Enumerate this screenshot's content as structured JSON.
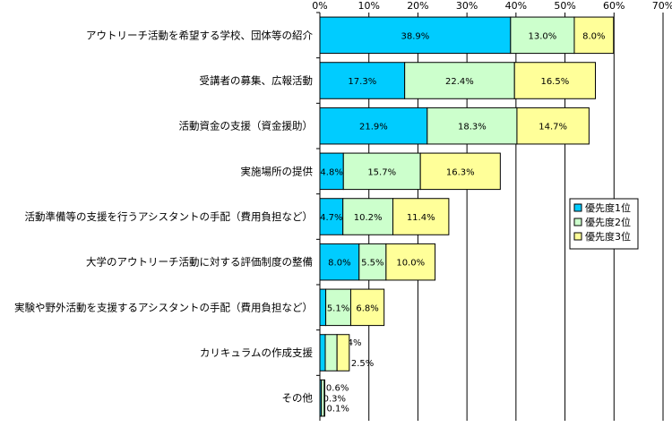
{
  "chart_data": {
    "type": "bar",
    "orientation": "horizontal",
    "stacked": true,
    "title": "",
    "xlabel": "",
    "ylabel": "",
    "xlim": [
      0,
      70
    ],
    "x_ticks": [
      0,
      10,
      20,
      30,
      40,
      50,
      60,
      70
    ],
    "tick_format": "{v}%",
    "grid": true,
    "legend_position": "right",
    "categories": [
      "アウトリーチ活動を希望する学校、団体等の紹介",
      "受講者の募集、広報活動",
      "活動資金の支援（資金援助）",
      "実施場所の提供",
      "活動準備等の支援を行うアシスタントの手配（費用負担など）",
      "大学のアウトリーチ活動に対する評価制度の整備",
      "実験や野外活動を支援するアシスタントの手配（費用負担など）",
      "カリキュラムの作成支援",
      "その他"
    ],
    "series": [
      {
        "name": "優先度1位",
        "color": "#00ccff",
        "values": [
          38.9,
          17.3,
          21.9,
          4.8,
          4.7,
          8.0,
          1.2,
          1.1,
          0.3
        ],
        "labels": [
          "38.9%",
          "17.3%",
          "21.9%",
          "4.8%",
          "4.7%",
          "8.0%",
          "1.2%",
          "1.1%",
          "0.3%"
        ]
      },
      {
        "name": "優先度2位",
        "color": "#ccffcc",
        "values": [
          13.0,
          22.4,
          18.3,
          15.7,
          10.2,
          5.5,
          5.1,
          2.4,
          0.6
        ],
        "labels": [
          "13.0%",
          "22.4%",
          "18.3%",
          "15.7%",
          "10.2%",
          "5.5%",
          "5.1%",
          "2.4%",
          "0.6%"
        ]
      },
      {
        "name": "優先度3位",
        "color": "#ffff99",
        "values": [
          8.0,
          16.5,
          14.7,
          16.3,
          11.4,
          10.0,
          6.8,
          2.5,
          0.1
        ],
        "labels": [
          "8.0%",
          "16.5%",
          "14.7%",
          "16.3%",
          "11.4%",
          "10.0%",
          "6.8%",
          "2.5%",
          "0.1%"
        ]
      }
    ]
  }
}
